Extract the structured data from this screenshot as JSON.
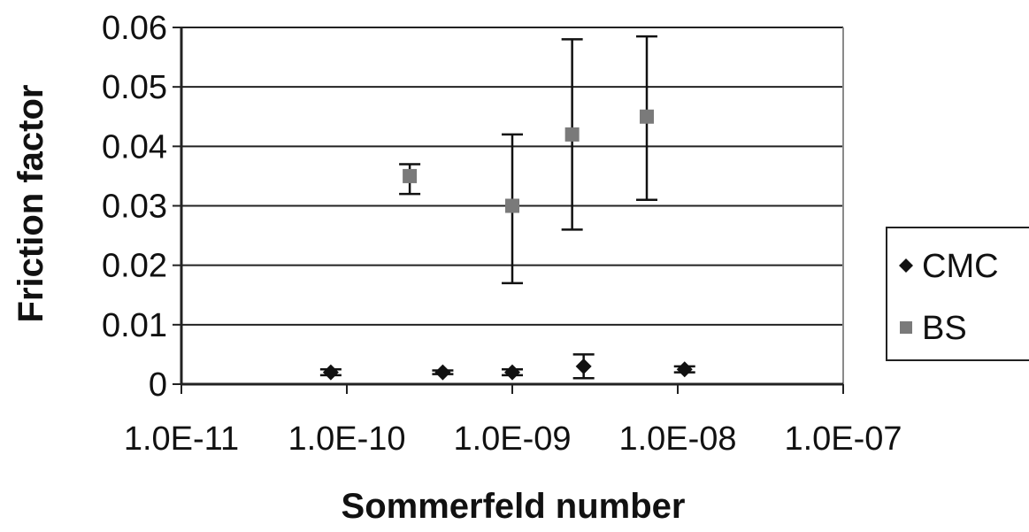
{
  "chart_data": {
    "type": "scatter",
    "xlabel": "Sommerfeld number",
    "ylabel": "Friction factor",
    "x_scale": "log",
    "xlim": [
      1e-11,
      1e-07
    ],
    "ylim": [
      0,
      0.06
    ],
    "x_ticks": [
      "1.0E-11",
      "1.0E-10",
      "1.0E-09",
      "1.0E-08",
      "1.0E-07"
    ],
    "y_ticks": [
      "0",
      "0.01",
      "0.02",
      "0.03",
      "0.04",
      "0.05",
      "0.06"
    ],
    "grid": "horizontal",
    "legend_position": "right",
    "series": [
      {
        "name": "CMC",
        "marker": "diamond",
        "color": "#111111",
        "points": [
          {
            "x": 8e-11,
            "y": 0.002,
            "err_low": 0.0015,
            "err_high": 0.0025
          },
          {
            "x": 3.8e-10,
            "y": 0.002,
            "err_low": 0.0017,
            "err_high": 0.0023
          },
          {
            "x": 1e-09,
            "y": 0.002,
            "err_low": 0.0015,
            "err_high": 0.0025
          },
          {
            "x": 2.7e-09,
            "y": 0.003,
            "err_low": 0.001,
            "err_high": 0.005
          },
          {
            "x": 1.1e-08,
            "y": 0.0025,
            "err_low": 0.002,
            "err_high": 0.003
          }
        ]
      },
      {
        "name": "BS",
        "marker": "square",
        "color": "#7a7a7a",
        "points": [
          {
            "x": 2.4e-10,
            "y": 0.035,
            "err_low": 0.032,
            "err_high": 0.037
          },
          {
            "x": 1e-09,
            "y": 0.03,
            "err_low": 0.017,
            "err_high": 0.042
          },
          {
            "x": 2.3e-09,
            "y": 0.042,
            "err_low": 0.026,
            "err_high": 0.058
          },
          {
            "x": 6.5e-09,
            "y": 0.045,
            "err_low": 0.031,
            "err_high": 0.0585
          }
        ]
      }
    ]
  }
}
